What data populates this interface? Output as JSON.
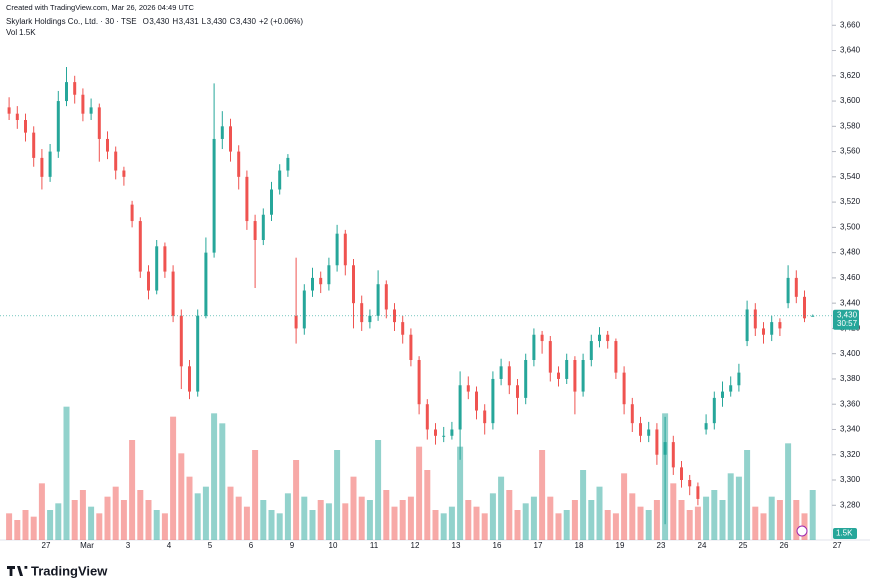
{
  "chart_data": {
    "type": "candlestick",
    "watermark": "Created with TradingView.com, Mar 26, 2026 04:49 UTC",
    "symbol": "Skylark Holdings Co., Ltd. · 30 · TSE",
    "ohlc_letters": [
      "O",
      "H",
      "L",
      "C"
    ],
    "ohlc_texts": [
      "3,430",
      "3,431",
      "3,430",
      "3,430"
    ],
    "change_text": "+2 (+0.06%)",
    "volume_title": "Vol",
    "volume_text": "1.5K",
    "countdown": "30:57",
    "last_price_label": "3,430",
    "brand": "TradingView",
    "up_color": "#26a69a",
    "down_color": "#ef5350",
    "ylim": [
      3252.5,
      3680
    ],
    "vlim": [
      0,
      4200
    ],
    "yticks": [
      {
        "value": 3280,
        "label": "3,280"
      },
      {
        "value": 3300,
        "label": "3,300"
      },
      {
        "value": 3320,
        "label": "3,320"
      },
      {
        "value": 3340,
        "label": "3,340"
      },
      {
        "value": 3360,
        "label": "3,360"
      },
      {
        "value": 3380,
        "label": "3,380"
      },
      {
        "value": 3400,
        "label": "3,400"
      },
      {
        "value": 3420,
        "label": "3,420"
      },
      {
        "value": 3440,
        "label": "3,440"
      },
      {
        "value": 3460,
        "label": "3,460"
      },
      {
        "value": 3480,
        "label": "3,480"
      },
      {
        "value": 3500,
        "label": "3,500"
      },
      {
        "value": 3520,
        "label": "3,520"
      },
      {
        "value": 3540,
        "label": "3,540"
      },
      {
        "value": 3560,
        "label": "3,560"
      },
      {
        "value": 3580,
        "label": "3,580"
      },
      {
        "value": 3600,
        "label": "3,600"
      },
      {
        "value": 3620,
        "label": "3,620"
      },
      {
        "value": 3640,
        "label": "3,640"
      },
      {
        "value": 3660,
        "label": "3,660"
      }
    ],
    "categories": [
      null,
      null,
      null,
      null,
      null,
      "27",
      null,
      null,
      null,
      null,
      "Mar",
      null,
      null,
      null,
      null,
      "3",
      null,
      null,
      null,
      null,
      "4",
      null,
      null,
      null,
      null,
      "5",
      null,
      null,
      null,
      null,
      "6",
      null,
      null,
      null,
      null,
      "9",
      null,
      null,
      null,
      null,
      "10",
      null,
      null,
      null,
      null,
      "11",
      null,
      null,
      null,
      null,
      "12",
      null,
      null,
      null,
      null,
      "13",
      null,
      null,
      null,
      null,
      "16",
      null,
      null,
      null,
      null,
      "17",
      null,
      null,
      null,
      null,
      "18",
      null,
      null,
      null,
      null,
      "19",
      null,
      null,
      null,
      null,
      "23",
      null,
      null,
      null,
      null,
      "24",
      null,
      null,
      null,
      null,
      "25",
      null,
      null,
      null,
      null,
      "26",
      null,
      null,
      null
    ],
    "future_label": "27",
    "open": [
      3595,
      3590,
      3585,
      3575,
      3555,
      3540,
      3560,
      3600,
      3615,
      3605,
      3590,
      3595,
      3570,
      3560,
      3545,
      3518,
      3505,
      3465,
      3450,
      3485,
      3465,
      3430,
      3390,
      3370,
      3430,
      3480,
      3570,
      3580,
      3560,
      3540,
      3505,
      3490,
      3510,
      3530,
      3545,
      3430,
      3420,
      3450,
      3460,
      3455,
      3470,
      3495,
      3470,
      3440,
      3425,
      3430,
      3455,
      3435,
      3425,
      3415,
      3395,
      3360,
      3340,
      3335,
      3335,
      3340,
      3375,
      3370,
      3355,
      3345,
      3380,
      3390,
      3375,
      3365,
      3395,
      3415,
      3410,
      3385,
      3380,
      3395,
      3370,
      3395,
      3410,
      3415,
      3410,
      3385,
      3360,
      3345,
      3335,
      3340,
      3320,
      3330,
      3310,
      3300,
      3295,
      3340,
      3345,
      3365,
      3370,
      3375,
      3410,
      3435,
      3420,
      3415,
      3425,
      3440,
      3460,
      3445,
      3430
    ],
    "high": [
      3603,
      3596,
      3590,
      3580,
      3562,
      3566,
      3608,
      3627,
      3620,
      3610,
      3602,
      3598,
      3576,
      3564,
      3548,
      3521,
      3508,
      3470,
      3490,
      3488,
      3470,
      3435,
      3395,
      3435,
      3492,
      3614,
      3592,
      3586,
      3565,
      3545,
      3510,
      3515,
      3536,
      3550,
      3558,
      3476,
      3455,
      3468,
      3465,
      3476,
      3502,
      3498,
      3475,
      3446,
      3435,
      3466,
      3458,
      3440,
      3430,
      3420,
      3398,
      3364,
      3345,
      3342,
      3346,
      3386,
      3382,
      3374,
      3360,
      3386,
      3396,
      3394,
      3380,
      3400,
      3420,
      3418,
      3414,
      3390,
      3400,
      3398,
      3400,
      3415,
      3421,
      3418,
      3412,
      3390,
      3365,
      3350,
      3346,
      3345,
      3350,
      3335,
      3315,
      3304,
      3298,
      3352,
      3370,
      3378,
      3382,
      3392,
      3442,
      3440,
      3425,
      3430,
      3428,
      3470,
      3466,
      3450,
      3431
    ],
    "low": [
      3585,
      3578,
      3568,
      3548,
      3530,
      3536,
      3555,
      3596,
      3598,
      3584,
      3585,
      3552,
      3554,
      3538,
      3533,
      3500,
      3460,
      3443,
      3447,
      3460,
      3425,
      3372,
      3364,
      3366,
      3428,
      3476,
      3562,
      3552,
      3530,
      3498,
      3452,
      3486,
      3505,
      3526,
      3540,
      3408,
      3415,
      3445,
      3448,
      3450,
      3465,
      3462,
      3420,
      3418,
      3420,
      3426,
      3428,
      3418,
      3408,
      3390,
      3352,
      3332,
      3328,
      3330,
      3332,
      3316,
      3364,
      3348,
      3336,
      3340,
      3375,
      3368,
      3352,
      3360,
      3390,
      3400,
      3378,
      3374,
      3376,
      3352,
      3366,
      3390,
      3405,
      3404,
      3380,
      3352,
      3338,
      3330,
      3330,
      3312,
      3265,
      3304,
      3294,
      3288,
      3280,
      3336,
      3340,
      3358,
      3366,
      3370,
      3406,
      3414,
      3408,
      3410,
      3414,
      3436,
      3440,
      3425,
      3430
    ],
    "close": [
      3590,
      3585,
      3575,
      3555,
      3540,
      3560,
      3600,
      3615,
      3605,
      3590,
      3595,
      3570,
      3560,
      3545,
      3540,
      3505,
      3465,
      3450,
      3485,
      3465,
      3430,
      3390,
      3370,
      3430,
      3480,
      3570,
      3580,
      3560,
      3540,
      3505,
      3490,
      3510,
      3530,
      3545,
      3555,
      3420,
      3450,
      3460,
      3455,
      3470,
      3495,
      3470,
      3440,
      3425,
      3430,
      3455,
      3435,
      3425,
      3415,
      3395,
      3360,
      3340,
      3335,
      3335,
      3340,
      3375,
      3370,
      3355,
      3345,
      3380,
      3390,
      3375,
      3365,
      3395,
      3415,
      3410,
      3385,
      3380,
      3395,
      3370,
      3395,
      3410,
      3415,
      3410,
      3385,
      3360,
      3345,
      3335,
      3340,
      3320,
      3330,
      3310,
      3300,
      3295,
      3285,
      3345,
      3365,
      3370,
      3375,
      3385,
      3435,
      3420,
      3415,
      3425,
      3420,
      3460,
      3445,
      3428,
      3430
    ],
    "volume": [
      800,
      600,
      900,
      700,
      1700,
      900,
      1100,
      4000,
      1200,
      1500,
      1000,
      800,
      1300,
      1600,
      1200,
      3000,
      1500,
      1200,
      900,
      800,
      3700,
      2600,
      1900,
      1400,
      1600,
      3800,
      3500,
      1600,
      1300,
      1000,
      2700,
      1200,
      900,
      800,
      1400,
      2400,
      1300,
      900,
      1200,
      1100,
      2700,
      1100,
      1900,
      1300,
      1200,
      3000,
      1500,
      1000,
      1200,
      1300,
      2800,
      2100,
      900,
      800,
      1000,
      2800,
      1200,
      1000,
      800,
      1400,
      1900,
      1500,
      900,
      1100,
      1300,
      2700,
      1300,
      800,
      900,
      1200,
      2100,
      1200,
      1600,
      900,
      800,
      2000,
      1400,
      1000,
      900,
      1200,
      3800,
      1700,
      1200,
      900,
      1000,
      1300,
      1500,
      1200,
      2000,
      1900,
      2700,
      1000,
      800,
      1300,
      1200,
      2900,
      1200,
      800,
      1500
    ]
  }
}
